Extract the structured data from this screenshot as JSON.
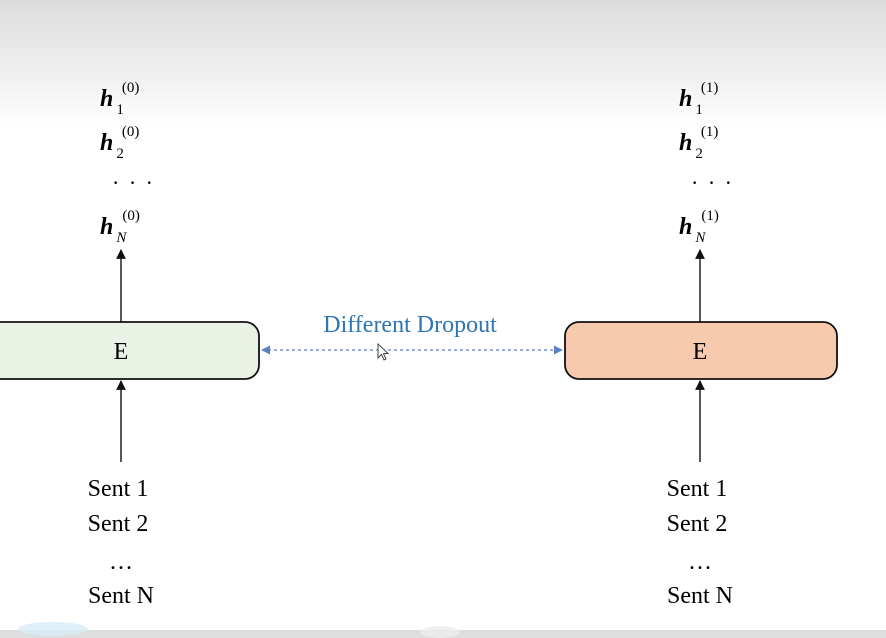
{
  "colors": {
    "left_encoder_fill": "#e8f3e6",
    "right_encoder_fill": "#f7c9ad",
    "dropout_text": "#2e75b6",
    "dropout_arrow": "#5b7fc4",
    "stroke": "#111111"
  },
  "left": {
    "outputs": [
      {
        "var": "h",
        "sub": "1",
        "sup": "(0)"
      },
      {
        "var": "h",
        "sub": "2",
        "sup": "(0)"
      },
      {
        "var": "h",
        "sub": "N",
        "sup": "(0)"
      }
    ],
    "ellipsis": "· · ·",
    "encoder_label": "E",
    "inputs": [
      "Sent 1",
      "Sent 2",
      "…",
      "Sent N"
    ]
  },
  "right": {
    "outputs": [
      {
        "var": "h",
        "sub": "1",
        "sup": "(1)"
      },
      {
        "var": "h",
        "sub": "2",
        "sup": "(1)"
      },
      {
        "var": "h",
        "sub": "N",
        "sup": "(1)"
      }
    ],
    "ellipsis": "· · ·",
    "encoder_label": "E",
    "inputs": [
      "Sent 1",
      "Sent 2",
      "…",
      "Sent N"
    ]
  },
  "connector": {
    "label": "Different Dropout"
  }
}
